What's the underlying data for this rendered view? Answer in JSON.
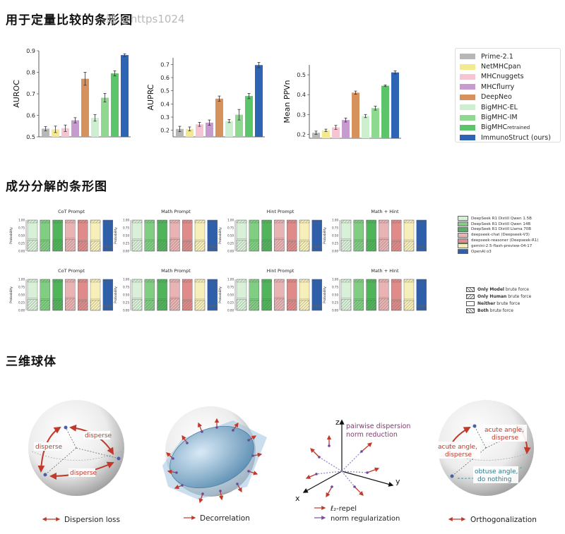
{
  "page": {
    "title1": "用于定量比较的条形图",
    "title2": "成分分解的条形图",
    "title3": "三维球体",
    "watermark": "站 @https1024"
  },
  "colors": {
    "Prime-2.1": "#b7b7b7",
    "NetMHCpan": "#f3e98f",
    "MHCnuggets": "#f5c5d2",
    "MHCflurry": "#c79ad0",
    "DeepNeo": "#d6915c",
    "BigMHC-EL": "#cdeecf",
    "BigMHC-IM": "#8fd88f",
    "BigMHC_retrained": "#5cc46a",
    "ImmunoStruct (ours)": "#2e64b4"
  },
  "chart_data": [
    {
      "type": "bar",
      "ylabel": "AUROC",
      "ylim": [
        0.5,
        0.9
      ],
      "yticks": [
        "0.5",
        "0.6",
        "0.7",
        "0.8",
        "0.9"
      ],
      "categories": [
        "Prime-2.1",
        "NetMHCpan",
        "MHCnuggets",
        "MHCflurry",
        "DeepNeo",
        "BigMHC-EL",
        "BigMHC-IM",
        "BigMHC_retrained",
        "ImmunoStruct (ours)"
      ],
      "values": [
        0.538,
        0.535,
        0.54,
        0.577,
        0.77,
        0.588,
        0.682,
        0.795,
        0.88
      ],
      "errors": [
        0.01,
        0.015,
        0.015,
        0.012,
        0.03,
        0.015,
        0.02,
        0.012,
        0.006
      ]
    },
    {
      "type": "bar",
      "ylabel": "AUPRC",
      "ylim": [
        0.15,
        0.75
      ],
      "yticks": [
        "0.2",
        "0.3",
        "0.4",
        "0.5",
        "0.6",
        "0.7"
      ],
      "categories": [
        "Prime-2.1",
        "NetMHCpan",
        "MHCnuggets",
        "MHCflurry",
        "DeepNeo",
        "BigMHC-EL",
        "BigMHC-IM",
        "BigMHC_retrained",
        "ImmunoStruct (ours)"
      ],
      "values": [
        0.21,
        0.21,
        0.245,
        0.258,
        0.44,
        0.27,
        0.318,
        0.46,
        0.695
      ],
      "errors": [
        0.02,
        0.015,
        0.015,
        0.02,
        0.02,
        0.012,
        0.04,
        0.02,
        0.02
      ]
    },
    {
      "type": "bar",
      "ylabel": "Mean PPVn",
      "ylim": [
        0.18,
        0.55
      ],
      "yticks": [
        "0.2",
        "0.3",
        "0.4",
        "0.5"
      ],
      "categories": [
        "Prime-2.1",
        "NetMHCpan",
        "MHCnuggets",
        "MHCflurry",
        "DeepNeo",
        "BigMHC-EL",
        "BigMHC-IM",
        "BigMHC_retrained",
        "ImmunoStruct (ours)"
      ],
      "values": [
        0.208,
        0.22,
        0.235,
        0.272,
        0.41,
        0.292,
        0.332,
        0.445,
        0.512
      ],
      "errors": [
        0.008,
        0.006,
        0.01,
        0.01,
        0.008,
        0.008,
        0.01,
        0.004,
        0.008
      ]
    },
    {
      "type": "bar",
      "stacked": true,
      "panels": [
        "CoT Prompt",
        "Math Prompt",
        "Hint Prompt",
        "Math + Hint",
        "CoT Prompt",
        "Math Prompt",
        "Hint Prompt",
        "Math + Hint"
      ],
      "ylabel": "Probability",
      "yticks_panel": [
        "0.00",
        "0.25",
        "0.50",
        "0.75",
        "1.00"
      ],
      "categories": [
        "DeepSeek R1 Distill Qwen 1.5B",
        "DeepSeek R1 Distill Qwen 14B",
        "DeepSeek R1 Distill Llama 70B",
        "deepseek-chat (Deepseek-V3)",
        "deepseek-reasoner (Deepseek-R1)",
        "gemini-2.5-flash-preview-04-17",
        "OpenAI o3"
      ],
      "series_colors": [
        "#d8f0d8",
        "#7fce82",
        "#4fb45a",
        "#e9b3b3",
        "#e08a8a",
        "#f7efb9",
        "#2e5fa8"
      ],
      "values": [
        0.35,
        0.33,
        0.33,
        0.38,
        0.3,
        0.32,
        0.12
      ]
    }
  ],
  "legend1": [
    "Prime-2.1",
    "NetMHCpan",
    "MHCnuggets",
    "MHCflurry",
    "DeepNeo",
    "BigMHC-EL",
    "BigMHC-IM",
    "BigMHC",
    "ImmunoStruct (ours)"
  ],
  "legend1_sub": "retrained",
  "legend2": [
    "DeepSeek R1 Distill Qwen 1.5B",
    "DeepSeek R1 Distill Qwen 14B",
    "DeepSeek R1 Distill Llama 70B",
    "deepseek-chat (Deepseek-V3)",
    "deepseek-reasoner (Deepseek-R1)",
    "gemini-2.5-flash-preview-04-17",
    "OpenAI o3"
  ],
  "legend3": [
    {
      "bold": "Only Model",
      "rest": " brute force"
    },
    {
      "bold": "Only Human",
      "rest": " brute force"
    },
    {
      "bold": "Neither",
      "rest": " brute force"
    },
    {
      "bold": "Both",
      "rest": " brute force"
    }
  ],
  "spheres": {
    "s1": {
      "labels": [
        "disperse",
        "disperse",
        "disperse"
      ],
      "caption": "Dispersion loss"
    },
    "s2": {
      "caption": "Decorrelation"
    },
    "s3": {
      "axis_z": "z",
      "axis_y": "y",
      "axis_x": "x",
      "note1": "pairwise dispersion",
      "note2": "norm reduction",
      "caption1": "ℓ₂-repel",
      "caption2": "norm regularization"
    },
    "s4": {
      "label1a": "acute angle,",
      "label1b": "disperse",
      "label2a": "acute angle,",
      "label2b": "disperse",
      "label3a": "obtuse angle,",
      "label3b": "do nothing",
      "caption": "Orthogonalization"
    }
  }
}
